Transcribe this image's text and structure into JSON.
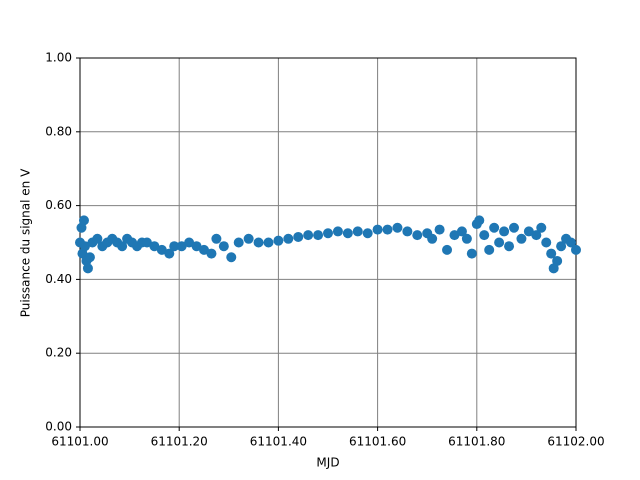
{
  "chart_data": {
    "type": "scatter",
    "xlabel": "MJD",
    "ylabel": "Puissance du signal en V",
    "x": [
      61101.0,
      61101.003,
      61101.005,
      61101.008,
      61101.01,
      61101.013,
      61101.016,
      61101.02,
      61101.025,
      61101.035,
      61101.045,
      61101.055,
      61101.065,
      61101.075,
      61101.085,
      61101.095,
      61101.105,
      61101.115,
      61101.125,
      61101.135,
      61101.15,
      61101.165,
      61101.18,
      61101.19,
      61101.205,
      61101.22,
      61101.235,
      61101.25,
      61101.265,
      61101.275,
      61101.29,
      61101.305,
      61101.32,
      61101.34,
      61101.36,
      61101.38,
      61101.4,
      61101.42,
      61101.44,
      61101.46,
      61101.48,
      61101.5,
      61101.52,
      61101.54,
      61101.56,
      61101.58,
      61101.6,
      61101.62,
      61101.64,
      61101.66,
      61101.68,
      61101.7,
      61101.71,
      61101.725,
      61101.74,
      61101.755,
      61101.77,
      61101.78,
      61101.79,
      61101.8,
      61101.805,
      61101.815,
      61101.825,
      61101.835,
      61101.845,
      61101.855,
      61101.865,
      61101.875,
      61101.89,
      61101.905,
      61101.92,
      61101.93,
      61101.94,
      61101.95,
      61101.955,
      61101.962,
      61101.97,
      61101.98,
      61101.99,
      61102.0
    ],
    "values": [
      0.5,
      0.54,
      0.47,
      0.56,
      0.49,
      0.45,
      0.43,
      0.46,
      0.5,
      0.51,
      0.49,
      0.5,
      0.51,
      0.5,
      0.49,
      0.51,
      0.5,
      0.49,
      0.5,
      0.5,
      0.49,
      0.48,
      0.47,
      0.49,
      0.49,
      0.5,
      0.49,
      0.48,
      0.47,
      0.51,
      0.49,
      0.46,
      0.5,
      0.51,
      0.5,
      0.5,
      0.505,
      0.51,
      0.515,
      0.52,
      0.52,
      0.525,
      0.53,
      0.525,
      0.53,
      0.525,
      0.535,
      0.535,
      0.54,
      0.53,
      0.52,
      0.525,
      0.51,
      0.535,
      0.48,
      0.52,
      0.53,
      0.51,
      0.47,
      0.55,
      0.56,
      0.52,
      0.48,
      0.54,
      0.5,
      0.53,
      0.49,
      0.54,
      0.51,
      0.53,
      0.52,
      0.54,
      0.5,
      0.47,
      0.43,
      0.45,
      0.49,
      0.51,
      0.5,
      0.48
    ],
    "color": "#1f77b4",
    "xlim": [
      61101.0,
      61102.0
    ],
    "xticks": [
      {
        "value": 61101.0,
        "label": "61101.00"
      },
      {
        "value": 61101.2,
        "label": "61101.20"
      },
      {
        "value": 61101.4,
        "label": "61101.40"
      },
      {
        "value": 61101.6,
        "label": "61101.60"
      },
      {
        "value": 61101.8,
        "label": "61101.80"
      },
      {
        "value": 61102.0,
        "label": "61102.00"
      }
    ],
    "ylim": [
      0,
      1
    ],
    "yticks": [
      {
        "value": 0,
        "label": "0.00"
      },
      {
        "value": 0.2,
        "label": "0.20"
      },
      {
        "value": 0.4,
        "label": "0.40"
      },
      {
        "value": 0.6,
        "label": "0.60"
      },
      {
        "value": 0.8,
        "label": "0.80"
      },
      {
        "value": 1,
        "label": "1.00"
      }
    ],
    "grid": true
  }
}
